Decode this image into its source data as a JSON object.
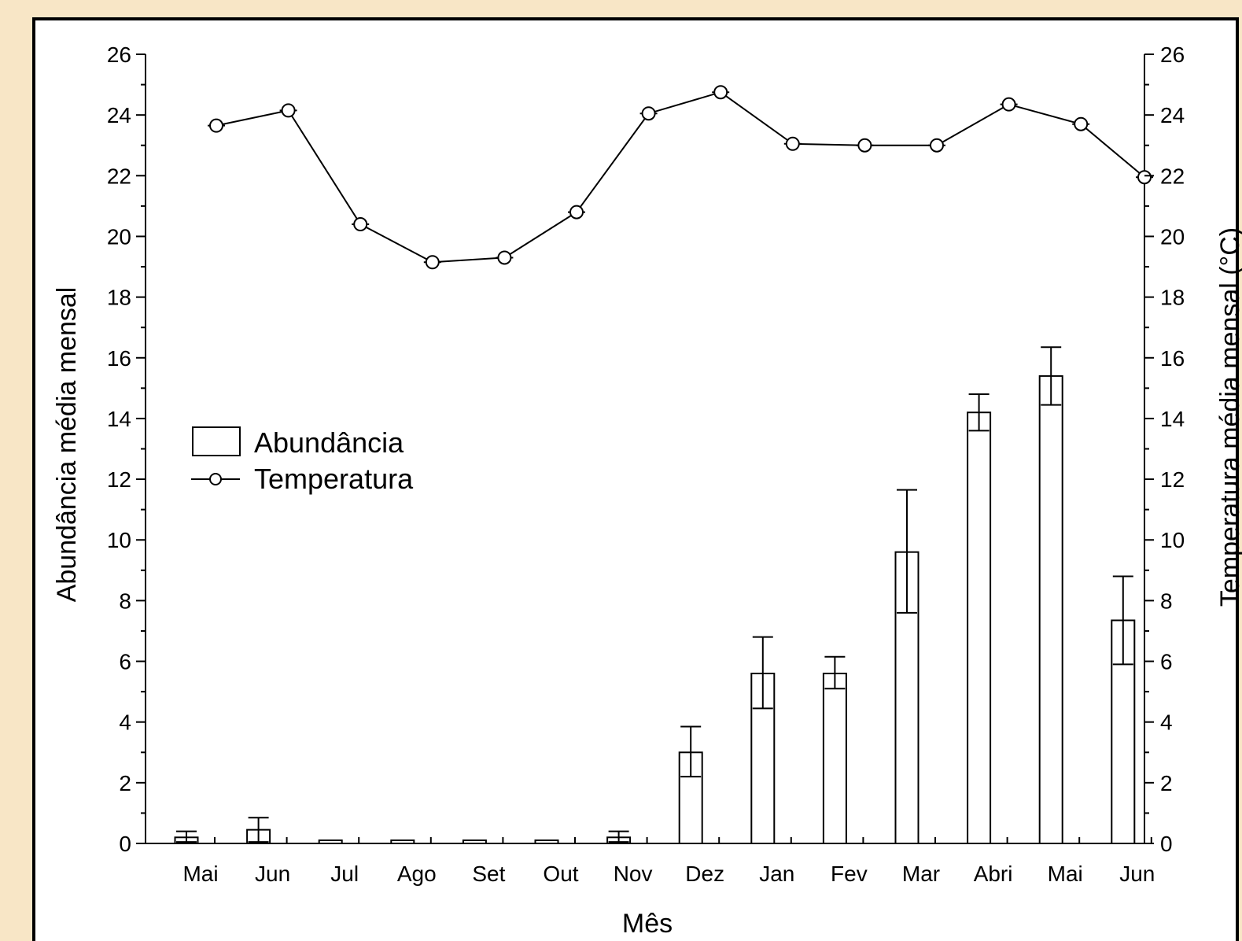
{
  "chart_data": {
    "type": "bar",
    "xlabel": "Mês",
    "ylabel_left": "Abundância média mensal",
    "ylabel_right": "Temperatura média mensal (°C)",
    "categories": [
      "Mai",
      "Jun",
      "Jul",
      "Ago",
      "Set",
      "Out",
      "Nov",
      "Dez",
      "Jan",
      "Fev",
      "Mar",
      "Abri",
      "Mai",
      "Jun"
    ],
    "ylim_left": [
      0,
      26
    ],
    "ylim_right": [
      0,
      26
    ],
    "yticks": [
      0,
      2,
      4,
      6,
      8,
      10,
      12,
      14,
      16,
      18,
      20,
      22,
      24,
      26
    ],
    "grid": false,
    "legend_position": "middle-left",
    "legend": [
      "Abundância",
      "Temperatura"
    ],
    "series": [
      {
        "name": "Abundância",
        "type": "bar",
        "axis": "left",
        "values": [
          0.2,
          0.45,
          0.0,
          0.0,
          0.0,
          0.0,
          0.2,
          3.0,
          5.6,
          5.6,
          9.6,
          14.2,
          15.4,
          7.35
        ],
        "error_low": [
          0.05,
          0.05,
          0.0,
          0.0,
          0.0,
          0.0,
          0.05,
          2.2,
          4.45,
          5.1,
          7.6,
          13.6,
          14.45,
          5.9
        ],
        "error_high": [
          0.4,
          0.85,
          0.0,
          0.0,
          0.0,
          0.0,
          0.4,
          3.85,
          6.8,
          6.15,
          11.65,
          14.8,
          16.35,
          8.8
        ]
      },
      {
        "name": "Temperatura",
        "type": "line",
        "axis": "right",
        "values": [
          23.65,
          24.15,
          20.4,
          19.15,
          19.3,
          20.8,
          24.05,
          24.75,
          23.05,
          23.0,
          23.0,
          24.35,
          23.7,
          21.95
        ]
      }
    ]
  }
}
